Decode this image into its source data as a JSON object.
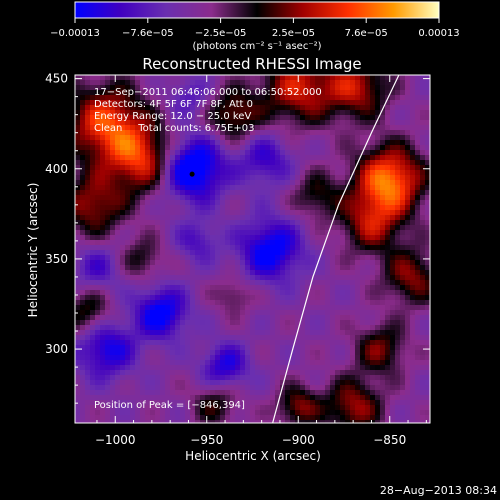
{
  "chart_data": {
    "type": "heatmap",
    "title": "Reconstructed RHESSI Image",
    "xlabel": "Heliocentric X (arcsec)",
    "ylabel": "Heliocentric Y (arcsec)",
    "xlim": [
      -1022,
      -828
    ],
    "ylim": [
      259,
      452
    ],
    "x_ticks": [
      {
        "value": -1000,
        "label": "−1000"
      },
      {
        "value": -950,
        "label": "−950"
      },
      {
        "value": -900,
        "label": "−900"
      },
      {
        "value": -850,
        "label": "−850"
      }
    ],
    "y_ticks": [
      {
        "value": 300,
        "label": "300"
      },
      {
        "value": 350,
        "label": "350"
      },
      {
        "value": 400,
        "label": "400"
      },
      {
        "value": 450,
        "label": "450"
      }
    ],
    "colorbar": {
      "min": -0.00013,
      "max": 0.00013,
      "tick_labels": [
        "−0.00013",
        "−7.6e−05",
        "−2.5e−05",
        "2.5e−05",
        "7.6e−05",
        "0.00013"
      ],
      "unit_label": "(photons cm⁻² s⁻¹ asec⁻²)",
      "colors": [
        "#0000ff",
        "#4000c0",
        "#6a2fb0",
        "#8b2c8c",
        "#000000",
        "#a00000",
        "#ff3000",
        "#ff9a00",
        "#ffffc0"
      ]
    },
    "annotations": [
      "17−Sep−2011 06:46:06.000 to 06:50:52.000",
      "Detectors: 4F 5F 6F 7F 8F, Att 0",
      "Energy Range: 12.0 − 25.0 keV",
      "Clean     Total counts: 6.75E+03"
    ],
    "peak_label": "Position of Peak = [−846,394]",
    "peak": {
      "x": -846,
      "y": 394
    },
    "limb_line": [
      {
        "x": -914,
        "y": 259
      },
      {
        "x": -903,
        "y": 300
      },
      {
        "x": -892,
        "y": 340
      },
      {
        "x": -878,
        "y": 380
      },
      {
        "x": -860,
        "y": 420
      },
      {
        "x": -845,
        "y": 452
      }
    ],
    "blobs": [
      {
        "x": -1005,
        "y": 425,
        "s": 15,
        "a": 0.85
      },
      {
        "x": -985,
        "y": 405,
        "s": 13,
        "a": 0.75
      },
      {
        "x": -1012,
        "y": 380,
        "s": 12,
        "a": 0.6
      },
      {
        "x": -935,
        "y": 430,
        "s": 10,
        "a": 0.55
      },
      {
        "x": -900,
        "y": 445,
        "s": 14,
        "a": 0.7
      },
      {
        "x": -868,
        "y": 445,
        "s": 12,
        "a": 0.65
      },
      {
        "x": -850,
        "y": 394,
        "s": 13,
        "a": 1.0
      },
      {
        "x": -860,
        "y": 370,
        "s": 12,
        "a": 0.6
      },
      {
        "x": -890,
        "y": 385,
        "s": 9,
        "a": 0.4
      },
      {
        "x": -838,
        "y": 340,
        "s": 11,
        "a": 0.55
      },
      {
        "x": -855,
        "y": 300,
        "s": 10,
        "a": 0.5
      },
      {
        "x": -870,
        "y": 268,
        "s": 11,
        "a": 0.6
      },
      {
        "x": -900,
        "y": 268,
        "s": 8,
        "a": 0.55
      },
      {
        "x": -985,
        "y": 350,
        "s": 8,
        "a": 0.35
      },
      {
        "x": -1015,
        "y": 320,
        "s": 9,
        "a": 0.45
      },
      {
        "x": -945,
        "y": 270,
        "s": 9,
        "a": 0.4
      },
      {
        "x": -935,
        "y": 330,
        "s": 7,
        "a": 0.3
      },
      {
        "x": -958,
        "y": 400,
        "s": 12,
        "a": -0.9
      },
      {
        "x": -915,
        "y": 355,
        "s": 12,
        "a": -0.7
      },
      {
        "x": -975,
        "y": 320,
        "s": 10,
        "a": -0.7
      },
      {
        "x": -1005,
        "y": 300,
        "s": 11,
        "a": -0.6
      },
      {
        "x": -940,
        "y": 290,
        "s": 9,
        "a": -0.55
      },
      {
        "x": -918,
        "y": 405,
        "s": 10,
        "a": -0.45
      },
      {
        "x": -1010,
        "y": 345,
        "s": 9,
        "a": -0.35
      },
      {
        "x": -955,
        "y": 360,
        "s": 8,
        "a": -0.35
      },
      {
        "x": -960,
        "y": 440,
        "s": 8,
        "a": -0.3
      }
    ]
  }
}
